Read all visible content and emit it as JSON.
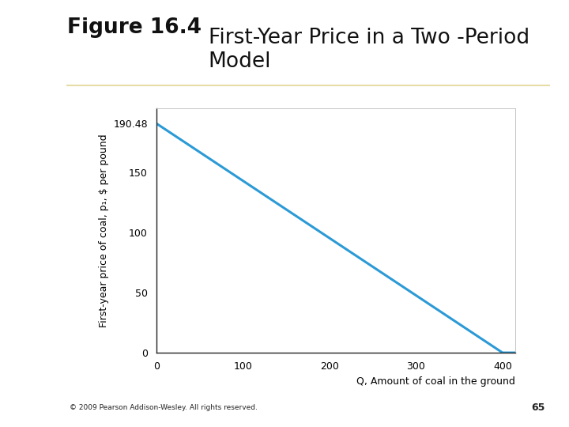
{
  "slide": {
    "figure_label": "Figure 16.4",
    "title": "First-Year Price in a Two -Period Model",
    "footer": "© 2009 Pearson Addison-Wesley. All rights reserved.",
    "page": "65"
  },
  "chart_data": {
    "type": "line",
    "x": [
      0,
      400,
      415
    ],
    "values": [
      190.48,
      0,
      0
    ],
    "color": "#2b9ad6",
    "x_label": "Q, Amount of coal in the ground",
    "y_label": "First-year price of coal, p₁, $ per pound",
    "xlim": [
      0,
      415
    ],
    "xticks": [
      0,
      100,
      200,
      300,
      400
    ],
    "ylim": [
      0,
      203
    ],
    "yticks": [
      0,
      50,
      100,
      150,
      190.48
    ],
    "grid": false
  }
}
